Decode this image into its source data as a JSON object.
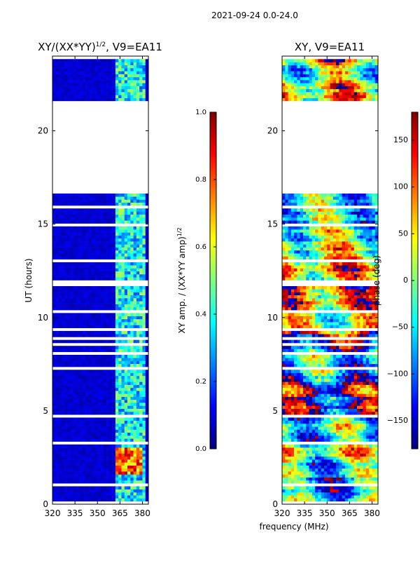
{
  "suptitle": "2021-09-24 0.0-24.0",
  "xlabel_shared": "frequency (MHz)",
  "colors": {
    "jet_stops": [
      "#00007f",
      "#0000ff",
      "#007fff",
      "#00ffff",
      "#7fff7f",
      "#ffff00",
      "#ff7f00",
      "#ff0000",
      "#7f0000"
    ],
    "gap": "#ffffff",
    "axis": "#000000"
  },
  "chart_data": [
    {
      "type": "heatmap",
      "name": "amplitude",
      "title_main": "XY/(XX*YY)",
      "title_sup": "1/2",
      "title_suffix": ", V9=EA11",
      "ylabel": "UT (hours)",
      "xlim": [
        320,
        384
      ],
      "ylim": [
        0,
        24
      ],
      "xticks": [
        320,
        335,
        350,
        365,
        380
      ],
      "yticks": [
        0,
        5,
        10,
        15,
        20
      ],
      "data_blocks_hours": [
        [
          0,
          16.5
        ],
        [
          21.5,
          23.8
        ]
      ],
      "empty_range_hours": [
        16.5,
        21.5
      ],
      "signal_band_mhz": [
        361,
        382
      ],
      "high_value_region": {
        "freq_mhz": [
          361,
          380
        ],
        "hours": [
          1.5,
          2.9
        ]
      },
      "colorbar": {
        "label": "XY amp. / (XX*YY amp)",
        "label_sup": "1/2",
        "range": [
          0.0,
          1.0
        ],
        "ticks": [
          "0.0",
          "0.2",
          "0.4",
          "0.6",
          "0.8",
          "1.0"
        ]
      }
    },
    {
      "type": "heatmap",
      "name": "phase",
      "title": "XY, V9=EA11",
      "xlim": [
        320,
        384
      ],
      "ylim": [
        0,
        24
      ],
      "xticks": [
        320,
        335,
        350,
        365,
        380
      ],
      "yticks": [
        0,
        5,
        10,
        15,
        20
      ],
      "data_blocks_hours": [
        [
          0,
          16.5
        ],
        [
          21.5,
          23.8
        ]
      ],
      "empty_range_hours": [
        16.5,
        21.5
      ],
      "colorbar": {
        "label": "phase (deg)",
        "range": [
          -180,
          180
        ],
        "ticks": [
          "−150",
          "−100",
          "−50",
          "0",
          "50",
          "100",
          "150"
        ]
      }
    }
  ]
}
